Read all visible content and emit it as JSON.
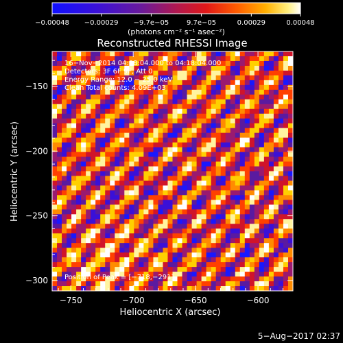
{
  "chart_data": {
    "type": "heatmap",
    "title": "Reconstructed RHESSI Image",
    "xlabel": "Heliocentric X (arcsec)",
    "ylabel": "Heliocentric Y (arcsec)",
    "xlim": [
      -765,
      -572
    ],
    "ylim": [
      -308,
      -123
    ],
    "x_ticks": [
      {
        "value": -750,
        "label": "−750"
      },
      {
        "value": -700,
        "label": "−700"
      },
      {
        "value": -650,
        "label": "−650"
      },
      {
        "value": -600,
        "label": "−600"
      }
    ],
    "y_ticks": [
      {
        "value": -150,
        "label": "−150"
      },
      {
        "value": -200,
        "label": "−200"
      },
      {
        "value": -250,
        "label": "−250"
      },
      {
        "value": -300,
        "label": "−300"
      }
    ],
    "colorbar": {
      "range": [
        -0.00048,
        0.00048
      ],
      "ticks": [
        {
          "value": -0.00048,
          "label": "−0.00048"
        },
        {
          "value": -0.00029,
          "label": "−0.00029"
        },
        {
          "value": -9.7e-05,
          "label": "−9.7e−05"
        },
        {
          "value": 9.7e-05,
          "label": "9.7e−05"
        },
        {
          "value": 0.00029,
          "label": "0.00029"
        },
        {
          "value": 0.00048,
          "label": "0.00048"
        }
      ],
      "unit_label": "(photons cm⁻² s⁻¹ asec⁻²)",
      "colors": [
        "#1818ff",
        "#3a10d8",
        "#5a1aa0",
        "#9a1a70",
        "#d0142a",
        "#ff4000",
        "#ff8c00",
        "#ffd000",
        "#fff4a0",
        "#ffffff"
      ]
    },
    "annotations": [
      "16−Nov−2014 04:08:04.000 to 04:18:04.000",
      "Detectors: 3F 6F 9F, Att 0",
      "Energy Range: 12.0 − 25.0 keV",
      "Clean    Total counts: 4.09E+03"
    ],
    "peak_label": "Position of Peak = [−718,−291]",
    "peak_position": [
      -718,
      -291
    ],
    "pattern": {
      "description": "diagonal stripe interference pattern",
      "direction": "down-right",
      "stripe_period_arcsec": 25,
      "nx": 50,
      "ny": 50
    }
  },
  "footer_date": "5−Aug−2017 02:37"
}
